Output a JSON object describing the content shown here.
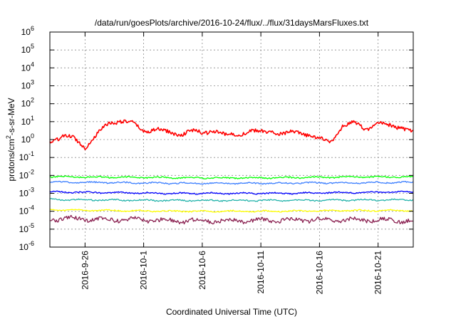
{
  "chart_data": {
    "type": "line",
    "title": "/data/run/goesPlots/archive/2016-10-24/flux/../flux/31daysMarsFluxes.txt",
    "xlabel": "Coordinated Universal Time (UTC)",
    "ylabel": "protons/cm²-s-sr-MeV",
    "yscale": "log",
    "ylim": [
      1e-06,
      1000000.0
    ],
    "xlim": [
      "2016-09-23",
      "2016-10-24"
    ],
    "grid": true,
    "x_ticks": [
      "2016-9-26",
      "2016-10-1",
      "2016-10-6",
      "2016-10-11",
      "2016-10-16",
      "2016-10-21"
    ],
    "y_ticks": [
      {
        "value": 1e-06,
        "mantissa": "10",
        "exp": "-6"
      },
      {
        "value": 1e-05,
        "mantissa": "10",
        "exp": "-5"
      },
      {
        "value": 0.0001,
        "mantissa": "10",
        "exp": "-4"
      },
      {
        "value": 0.001,
        "mantissa": "10",
        "exp": "-3"
      },
      {
        "value": 0.01,
        "mantissa": "10",
        "exp": "-2"
      },
      {
        "value": 0.1,
        "mantissa": "10",
        "exp": "-1"
      },
      {
        "value": 1,
        "mantissa": "10",
        "exp": "0"
      },
      {
        "value": 10,
        "mantissa": "10",
        "exp": "1"
      },
      {
        "value": 100,
        "mantissa": "10",
        "exp": "2"
      },
      {
        "value": 1000,
        "mantissa": "10",
        "exp": "3"
      },
      {
        "value": 10000,
        "mantissa": "10",
        "exp": "4"
      },
      {
        "value": 100000,
        "mantissa": "10",
        "exp": "5"
      },
      {
        "value": 1000000,
        "mantissa": "10",
        "exp": "6"
      }
    ],
    "series": [
      {
        "color": "#ff0000",
        "width": 1.6,
        "x": [
          "2016-09-23",
          "2016-09-24",
          "2016-09-25",
          "2016-09-26",
          "2016-09-27",
          "2016-09-28",
          "2016-09-29",
          "2016-09-30",
          "2016-10-01",
          "2016-10-02",
          "2016-10-03",
          "2016-10-04",
          "2016-10-05",
          "2016-10-06",
          "2016-10-07",
          "2016-10-08",
          "2016-10-09",
          "2016-10-10",
          "2016-10-11",
          "2016-10-12",
          "2016-10-13",
          "2016-10-14",
          "2016-10-15",
          "2016-10-16",
          "2016-10-17",
          "2016-10-18",
          "2016-10-19",
          "2016-10-20",
          "2016-10-21",
          "2016-10-22",
          "2016-10-23",
          "2016-10-24"
        ],
        "y": [
          0.8,
          1.5,
          1.2,
          0.4,
          1.8,
          8,
          12,
          8,
          3,
          4,
          2.5,
          2,
          3,
          2.2,
          3.5,
          1.6,
          2,
          3,
          2.5,
          3,
          2,
          2.5,
          2,
          1,
          0.8,
          6,
          8,
          4,
          8,
          6,
          5,
          2.5
        ]
      },
      {
        "color": "#00ff00",
        "width": 1.3,
        "x": [
          "2016-09-23",
          "2016-09-28",
          "2016-10-03",
          "2016-10-08",
          "2016-10-13",
          "2016-10-18",
          "2016-10-24"
        ],
        "y": [
          0.0085,
          0.008,
          0.0075,
          0.0072,
          0.0075,
          0.008,
          0.0082
        ]
      },
      {
        "color": "#3a7dff",
        "width": 1.3,
        "x": [
          "2016-09-23",
          "2016-09-28",
          "2016-10-03",
          "2016-10-08",
          "2016-10-13",
          "2016-10-18",
          "2016-10-24"
        ],
        "y": [
          0.0042,
          0.004,
          0.0037,
          0.0036,
          0.0037,
          0.0039,
          0.0041
        ]
      },
      {
        "color": "#0000ff",
        "width": 1.3,
        "x": [
          "2016-09-23",
          "2016-09-28",
          "2016-10-03",
          "2016-10-08",
          "2016-10-13",
          "2016-10-18",
          "2016-10-24"
        ],
        "y": [
          0.0012,
          0.0011,
          0.001,
          0.001,
          0.001,
          0.0011,
          0.0012
        ]
      },
      {
        "color": "#20b2aa",
        "width": 1.3,
        "x": [
          "2016-09-23",
          "2016-09-28",
          "2016-10-03",
          "2016-10-08",
          "2016-10-13",
          "2016-10-18",
          "2016-10-24"
        ],
        "y": [
          0.00045,
          0.00042,
          0.0004,
          0.0004,
          0.0004,
          0.00042,
          0.00044
        ]
      },
      {
        "color": "#ffff00",
        "width": 1.3,
        "x": [
          "2016-09-23",
          "2016-09-28",
          "2016-10-03",
          "2016-10-08",
          "2016-10-13",
          "2016-10-18",
          "2016-10-24"
        ],
        "y": [
          0.00012,
          0.00011,
          0.0001,
          0.0001,
          0.0001,
          0.00011,
          0.00011
        ]
      },
      {
        "color": "#8b2252",
        "width": 1.3,
        "x": [
          "2016-09-23",
          "2016-09-28",
          "2016-10-03",
          "2016-10-08",
          "2016-10-13",
          "2016-10-18",
          "2016-10-24"
        ],
        "y": [
          4e-05,
          3.5e-05,
          3e-05,
          3e-05,
          3.2e-05,
          3.5e-05,
          3e-05
        ]
      }
    ]
  }
}
